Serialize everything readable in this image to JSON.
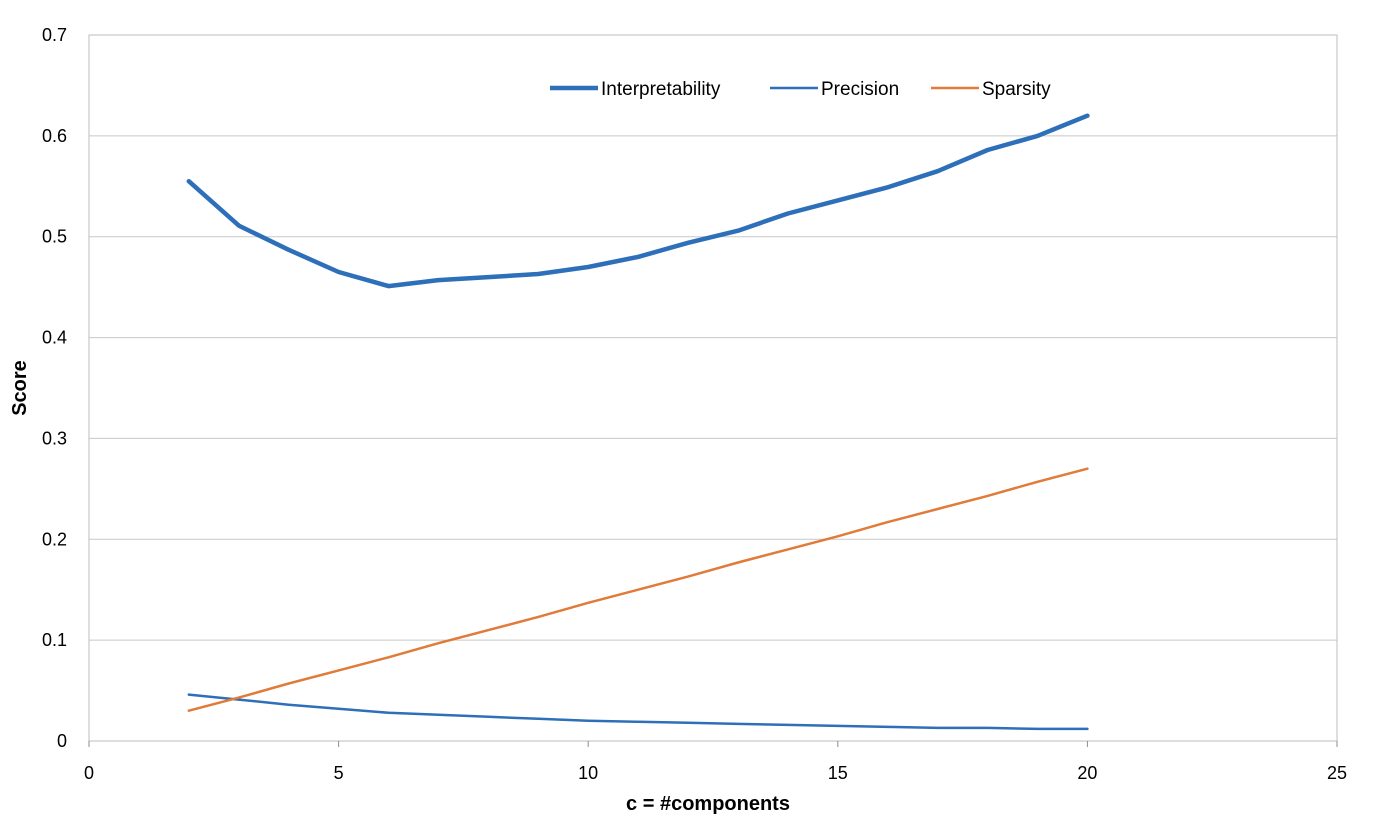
{
  "chart_data": {
    "type": "line",
    "title": "",
    "xlabel": "c = #components",
    "ylabel": "Score",
    "xlim": [
      0,
      25
    ],
    "ylim": [
      0,
      0.7
    ],
    "x_ticks": [
      "0",
      "5",
      "10",
      "15",
      "20",
      "25"
    ],
    "y_ticks": [
      "0",
      "0.1",
      "0.2",
      "0.3",
      "0.4",
      "0.5",
      "0.6",
      "0.7"
    ],
    "grid": "horizontal",
    "legend_position": "top-right",
    "x": [
      2,
      3,
      4,
      5,
      6,
      7,
      8,
      9,
      10,
      11,
      12,
      13,
      14,
      15,
      16,
      17,
      18,
      19,
      20
    ],
    "series": [
      {
        "name": "Interpretability",
        "color": "#2e6fba",
        "width": "thick",
        "values": [
          0.555,
          0.511,
          0.487,
          0.465,
          0.451,
          0.457,
          0.46,
          0.463,
          0.47,
          0.48,
          0.494,
          0.506,
          0.523,
          0.536,
          0.549,
          0.565,
          0.586,
          0.6,
          0.62
        ]
      },
      {
        "name": "Precision",
        "color": "#2e6fba",
        "width": "thin",
        "values": [
          0.046,
          0.041,
          0.036,
          0.032,
          0.028,
          0.026,
          0.024,
          0.022,
          0.02,
          0.019,
          0.018,
          0.017,
          0.016,
          0.015,
          0.014,
          0.013,
          0.013,
          0.012,
          0.012
        ]
      },
      {
        "name": "Sparsity",
        "color": "#e07b39",
        "width": "thin",
        "values": [
          0.03,
          0.043,
          0.057,
          0.07,
          0.083,
          0.097,
          0.11,
          0.123,
          0.137,
          0.15,
          0.163,
          0.177,
          0.19,
          0.203,
          0.217,
          0.23,
          0.243,
          0.257,
          0.27
        ]
      }
    ]
  }
}
